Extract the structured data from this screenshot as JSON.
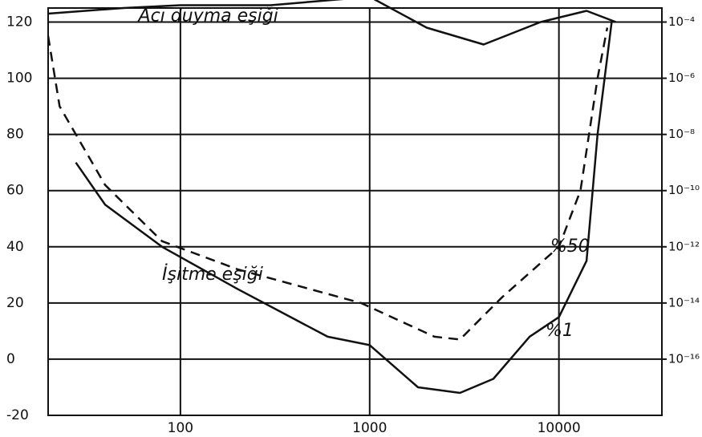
{
  "chart_data": {
    "type": "line",
    "x_scale": "log",
    "y2_scale": "log",
    "xlim": [
      20,
      35000
    ],
    "ylim": [
      -20,
      125
    ],
    "y2lim": [
      1e-18,
      0.000316
    ],
    "xticks": [
      100,
      1000,
      10000
    ],
    "yticks": [
      120,
      100,
      80,
      60,
      40,
      20,
      0,
      {
        "value": -20,
        "label": "-20"
      }
    ],
    "y2ticks": [
      {
        "value": 0.0001,
        "label": "10⁻⁴"
      },
      {
        "value": 1e-06,
        "label": "10⁻⁶"
      },
      {
        "value": 1e-08,
        "label": "10⁻⁸"
      },
      {
        "value": 1e-10,
        "label": "10⁻¹⁰"
      },
      {
        "value": 1e-12,
        "label": "10⁻¹²"
      },
      {
        "value": 1e-14,
        "label": "10⁻¹⁴"
      },
      {
        "value": 1e-16,
        "label": "10⁻¹⁶"
      }
    ],
    "grid": true,
    "series": [
      {
        "name": "Acı duyma eşiği",
        "color": "#111111",
        "dash": false,
        "x": [
          20,
          50,
          100,
          300,
          1000,
          2000,
          4000,
          8000,
          14000,
          20000
        ],
        "values": [
          123,
          125,
          126,
          126,
          129,
          118,
          112,
          120,
          124,
          120
        ]
      },
      {
        "name": "%1",
        "color": "#111111",
        "dash": false,
        "x": [
          28,
          40,
          80,
          200,
          600,
          1000,
          1800,
          3000,
          4500,
          7000,
          10000,
          14000,
          16000,
          19000
        ],
        "values": [
          70,
          55,
          40,
          25,
          8,
          5,
          -10,
          -12,
          -7,
          8,
          15,
          35,
          80,
          120
        ]
      },
      {
        "name": "%50",
        "color": "#111111",
        "dash": true,
        "x": [
          20,
          23,
          40,
          80,
          200,
          900,
          2200,
          3000,
          5000,
          10000,
          13000,
          16000,
          18000
        ],
        "values": [
          115,
          90,
          62,
          42,
          32,
          20,
          8,
          7,
          22,
          40,
          60,
          100,
          118
        ]
      }
    ],
    "annotations": [
      {
        "text": "Acı duyma eşiği",
        "x": 60,
        "y": 122
      },
      {
        "text": "İşitme eşiği",
        "x": 80,
        "y": 30
      },
      {
        "text": "%50",
        "x": 9000,
        "y": 40
      },
      {
        "text": "%1",
        "x": 8500,
        "y": 10
      }
    ]
  }
}
